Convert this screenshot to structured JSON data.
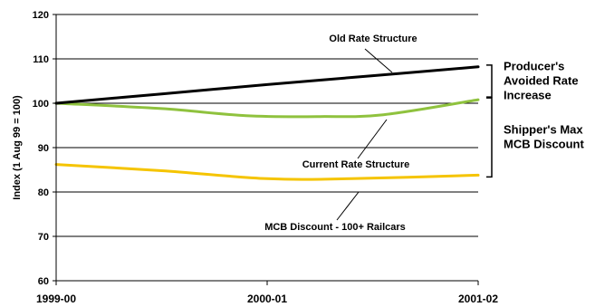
{
  "chart_data": {
    "type": "line",
    "x": [
      "1999-00",
      "2000-01",
      "2001-02"
    ],
    "xlabel": "",
    "ylabel": "Index (1 Aug 99 = 100)",
    "ylim": [
      60,
      120
    ],
    "yticks": [
      60,
      70,
      80,
      90,
      100,
      110,
      120
    ],
    "grid": true,
    "series": [
      {
        "name": "Old Rate Structure",
        "color": "#000000",
        "points": [
          [
            0,
            100
          ],
          [
            0.5,
            102.1
          ],
          [
            1,
            104.2
          ],
          [
            1.5,
            106.2
          ],
          [
            2,
            108.2
          ]
        ]
      },
      {
        "name": "Current Rate Structure",
        "color": "#8fc23e",
        "points": [
          [
            0,
            100
          ],
          [
            0.5,
            98.8
          ],
          [
            0.9,
            97.2
          ],
          [
            1.25,
            97.0
          ],
          [
            1.55,
            97.4
          ],
          [
            2,
            100.8
          ]
        ]
      },
      {
        "name": "MCB Discount - 100+ Railcars",
        "color": "#f5c400",
        "points": [
          [
            0,
            86.2
          ],
          [
            0.5,
            84.8
          ],
          [
            1,
            83.0
          ],
          [
            1.4,
            83.0
          ],
          [
            2,
            83.8
          ]
        ]
      }
    ],
    "brackets": [
      {
        "label": [
          "Producer's",
          "Avoided Rate",
          "Increase"
        ],
        "from": 100.8,
        "to": 108.2
      },
      {
        "label": [
          "Shipper's Max",
          "MCB Discount"
        ],
        "from": 83.8,
        "to": 100.8
      }
    ]
  }
}
